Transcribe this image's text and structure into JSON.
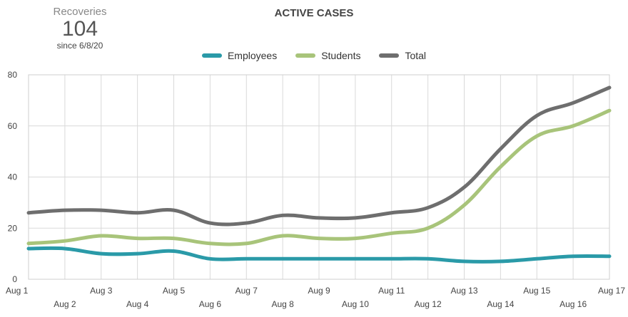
{
  "kpi": {
    "label": "Recoveries",
    "value": "104",
    "sub": "since 6/8/20"
  },
  "chart_data": {
    "type": "line",
    "title": "ACTIVE CASES",
    "xlabel": "",
    "ylabel": "",
    "categories": [
      "Aug 1",
      "Aug 2",
      "Aug 3",
      "Aug 4",
      "Aug 5",
      "Aug 6",
      "Aug 7",
      "Aug 8",
      "Aug 9",
      "Aug 10",
      "Aug 11",
      "Aug 12",
      "Aug 13",
      "Aug 14",
      "Aug 15",
      "Aug 16",
      "Aug 17"
    ],
    "ylim": [
      0,
      80
    ],
    "yticks": [
      0,
      20,
      40,
      60,
      80
    ],
    "grid": true,
    "legend": "top-center",
    "series": [
      {
        "name": "Employees",
        "color": "#2a9aa8",
        "values": [
          12,
          12,
          10,
          10,
          11,
          8,
          8,
          8,
          8,
          8,
          8,
          8,
          7,
          7,
          8,
          9,
          9
        ]
      },
      {
        "name": "Students",
        "color": "#a8c47a",
        "values": [
          14,
          15,
          17,
          16,
          16,
          14,
          14,
          17,
          16,
          16,
          18,
          20,
          29,
          44,
          56,
          60,
          66
        ]
      },
      {
        "name": "Total",
        "color": "#6e6e6e",
        "values": [
          26,
          27,
          27,
          26,
          27,
          22,
          22,
          25,
          24,
          24,
          26,
          28,
          36,
          51,
          64,
          69,
          75
        ]
      }
    ]
  }
}
